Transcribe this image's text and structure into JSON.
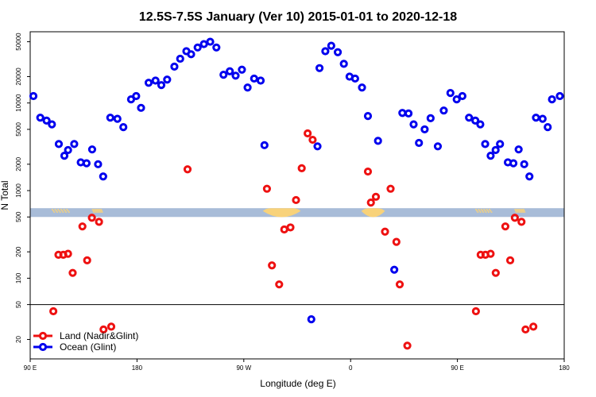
{
  "chart_data": {
    "type": "scatter",
    "title": "12.5S-7.5S January (Ver 10)   2015-01-01 to 2020-12-18",
    "xlabel": "Longitude (deg E)",
    "ylabel": "N Total",
    "x_ticks": [
      {
        "value": 90,
        "label": "90 E"
      },
      {
        "value": 180,
        "label": "180"
      },
      {
        "value": 270,
        "label": "90 W"
      },
      {
        "value": 360,
        "label": "0"
      },
      {
        "value": 450,
        "label": "90 E"
      },
      {
        "value": 540,
        "label": "180"
      }
    ],
    "xlim": [
      90,
      540
    ],
    "y_scale": "log",
    "ylim": [
      12,
      65000
    ],
    "y_ticks": [
      {
        "value": 20,
        "label": "20"
      },
      {
        "value": 50,
        "label": "50"
      },
      {
        "value": 100,
        "label": "100"
      },
      {
        "value": 200,
        "label": "200"
      },
      {
        "value": 500,
        "label": "500"
      },
      {
        "value": 1000,
        "label": "1000"
      },
      {
        "value": 2000,
        "label": "2000"
      },
      {
        "value": 5000,
        "label": "5000"
      },
      {
        "value": 10000,
        "label": "10000"
      },
      {
        "value": 20000,
        "label": "20000"
      },
      {
        "value": 50000,
        "label": "50000"
      }
    ],
    "reference_line_y": 50,
    "map_strip": {
      "y_range": [
        500,
        630
      ],
      "ocean_color": "#a8bcd8",
      "land_color": "#f8d27a"
    },
    "legend_position": "bottom-left",
    "series": [
      {
        "name": "Land (Nadir&Glint)",
        "color": "#ee1111",
        "points": [
          [
            109.5,
            42
          ],
          [
            113.8,
            185
          ],
          [
            117.9,
            185
          ],
          [
            121.9,
            190
          ],
          [
            125.8,
            115
          ],
          [
            134,
            390
          ],
          [
            138,
            160
          ],
          [
            142,
            490
          ],
          [
            148,
            440
          ],
          [
            151.8,
            26
          ],
          [
            158.3,
            28
          ],
          [
            222.6,
            1750
          ],
          [
            289.5,
            1050
          ],
          [
            293.7,
            140
          ],
          [
            299.8,
            85
          ],
          [
            304.1,
            360
          ],
          [
            309.3,
            380
          ],
          [
            314,
            780
          ],
          [
            318.8,
            1800
          ],
          [
            323.8,
            4500
          ],
          [
            328,
            3800
          ],
          [
            374.6,
            1650
          ],
          [
            377.1,
            730
          ],
          [
            381.3,
            850
          ],
          [
            389,
            340
          ],
          [
            393.7,
            1050
          ],
          [
            398.6,
            260
          ],
          [
            401.4,
            85
          ],
          [
            407.8,
            17
          ],
          [
            465.6,
            42
          ],
          [
            469.6,
            185
          ],
          [
            473.6,
            185
          ],
          [
            478,
            190
          ],
          [
            482.3,
            115
          ],
          [
            490.4,
            390
          ],
          [
            494.5,
            160
          ],
          [
            498.4,
            490
          ],
          [
            504,
            440
          ],
          [
            507.4,
            26
          ],
          [
            514,
            28
          ]
        ]
      },
      {
        "name": "Ocean (Glint)",
        "color": "#0000ee",
        "points": [
          [
            92.7,
            12000
          ],
          [
            98.5,
            6800
          ],
          [
            103.8,
            6300
          ],
          [
            108.3,
            5700
          ],
          [
            114.1,
            3400
          ],
          [
            118.8,
            2500
          ],
          [
            121.9,
            2900
          ],
          [
            127.1,
            3400
          ],
          [
            132.6,
            2100
          ],
          [
            137.5,
            2050
          ],
          [
            142.2,
            2950
          ],
          [
            147.2,
            2000
          ],
          [
            151.5,
            1450
          ],
          [
            157.5,
            6800
          ],
          [
            163.5,
            6600
          ],
          [
            168.5,
            5300
          ],
          [
            175,
            11000
          ],
          [
            179.3,
            12000
          ],
          [
            183.4,
            8800
          ],
          [
            189.8,
            17000
          ],
          [
            195.6,
            18000
          ],
          [
            200.5,
            16000
          ],
          [
            205.4,
            18500
          ],
          [
            211.5,
            26000
          ],
          [
            216.4,
            32000
          ],
          [
            221.6,
            39000
          ],
          [
            225.6,
            36000
          ],
          [
            231.1,
            43000
          ],
          [
            236.4,
            47000
          ],
          [
            241.7,
            50000
          ],
          [
            246.9,
            43000
          ],
          [
            252.9,
            21000
          ],
          [
            258.2,
            23000
          ],
          [
            263.1,
            20500
          ],
          [
            268.4,
            24000
          ],
          [
            273.2,
            15000
          ],
          [
            278.7,
            19000
          ],
          [
            284.2,
            18000
          ],
          [
            287.4,
            3300
          ],
          [
            326.9,
            34
          ],
          [
            332.1,
            3200
          ],
          [
            333.8,
            25000
          ],
          [
            338.7,
            39000
          ],
          [
            343.7,
            45000
          ],
          [
            349.2,
            38000
          ],
          [
            354.3,
            28000
          ],
          [
            359.1,
            20000
          ],
          [
            363.8,
            19000
          ],
          [
            369.6,
            15000
          ],
          [
            374.6,
            7100
          ],
          [
            383.1,
            3700
          ],
          [
            396.8,
            125
          ],
          [
            403.6,
            7700
          ],
          [
            408.8,
            7600
          ],
          [
            413.1,
            5700
          ],
          [
            417.6,
            3500
          ],
          [
            422.4,
            5000
          ],
          [
            427.4,
            6700
          ],
          [
            433.5,
            3200
          ],
          [
            438.5,
            8200
          ],
          [
            444.1,
            13000
          ],
          [
            449.4,
            11000
          ],
          [
            454.2,
            12000
          ],
          [
            459.8,
            6800
          ],
          [
            465.1,
            6300
          ],
          [
            469.3,
            5700
          ],
          [
            473.4,
            3400
          ],
          [
            478,
            2500
          ],
          [
            482.2,
            2900
          ],
          [
            485.9,
            3400
          ],
          [
            492.5,
            2100
          ],
          [
            497.2,
            2050
          ],
          [
            501.6,
            2950
          ],
          [
            506.3,
            2000
          ],
          [
            510.7,
            1450
          ],
          [
            516.2,
            6800
          ],
          [
            521.8,
            6600
          ],
          [
            526.1,
            5300
          ],
          [
            529.7,
            11000
          ],
          [
            536.3,
            12000
          ]
        ]
      }
    ]
  }
}
